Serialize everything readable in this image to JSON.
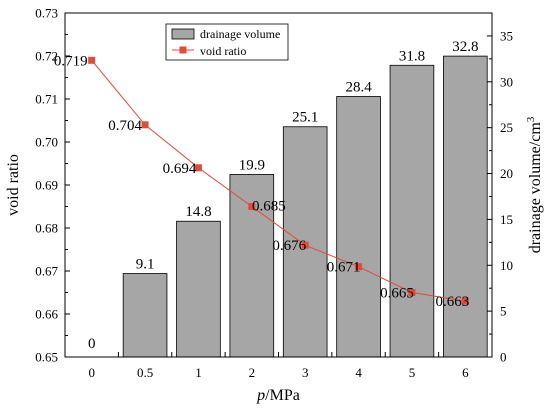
{
  "chart_data": {
    "type": "bar",
    "xlabel_italic": "p",
    "xlabel_rest": "/MPa",
    "ylabel_left": "void ratio",
    "ylabel_right_main": "drainage volume/cm",
    "ylabel_right_sup": "3",
    "categories": [
      "0",
      "0.5",
      "1",
      "2",
      "3",
      "4",
      "5",
      "6"
    ],
    "left_axis": {
      "ylim": [
        0.65,
        0.73
      ],
      "ticks": [
        0.65,
        0.66,
        0.67,
        0.68,
        0.69,
        0.7,
        0.71,
        0.72,
        0.73
      ],
      "tick_labels": [
        "0.65",
        "0.66",
        "0.67",
        "0.68",
        "0.69",
        "0.70",
        "0.71",
        "0.72",
        "0.73"
      ]
    },
    "right_axis": {
      "ylim": [
        0,
        37.5
      ],
      "ticks": [
        0,
        5,
        10,
        15,
        20,
        25,
        30,
        35
      ],
      "tick_labels": [
        "0",
        "5",
        "10",
        "15",
        "20",
        "25",
        "30",
        "35"
      ]
    },
    "series": [
      {
        "name": "drainage volume",
        "type": "bar",
        "axis": "right",
        "color": "#a6a6a6",
        "values": [
          0,
          9.1,
          14.8,
          19.9,
          25.1,
          28.4,
          31.8,
          32.8
        ],
        "labels": [
          "0",
          "9.1",
          "14.8",
          "19.9",
          "25.1",
          "28.4",
          "31.8",
          "32.8"
        ]
      },
      {
        "name": "void ratio",
        "type": "line",
        "axis": "left",
        "color": "#e04b3c",
        "values": [
          0.719,
          0.704,
          0.694,
          0.685,
          0.676,
          0.671,
          0.665,
          0.663
        ],
        "labels": [
          "0.719",
          "0.704",
          "0.694",
          "0.685",
          "0.676",
          "0.671",
          "0.665",
          "0.663"
        ]
      }
    ],
    "legend": {
      "placement": "top-left"
    },
    "grid": false
  }
}
